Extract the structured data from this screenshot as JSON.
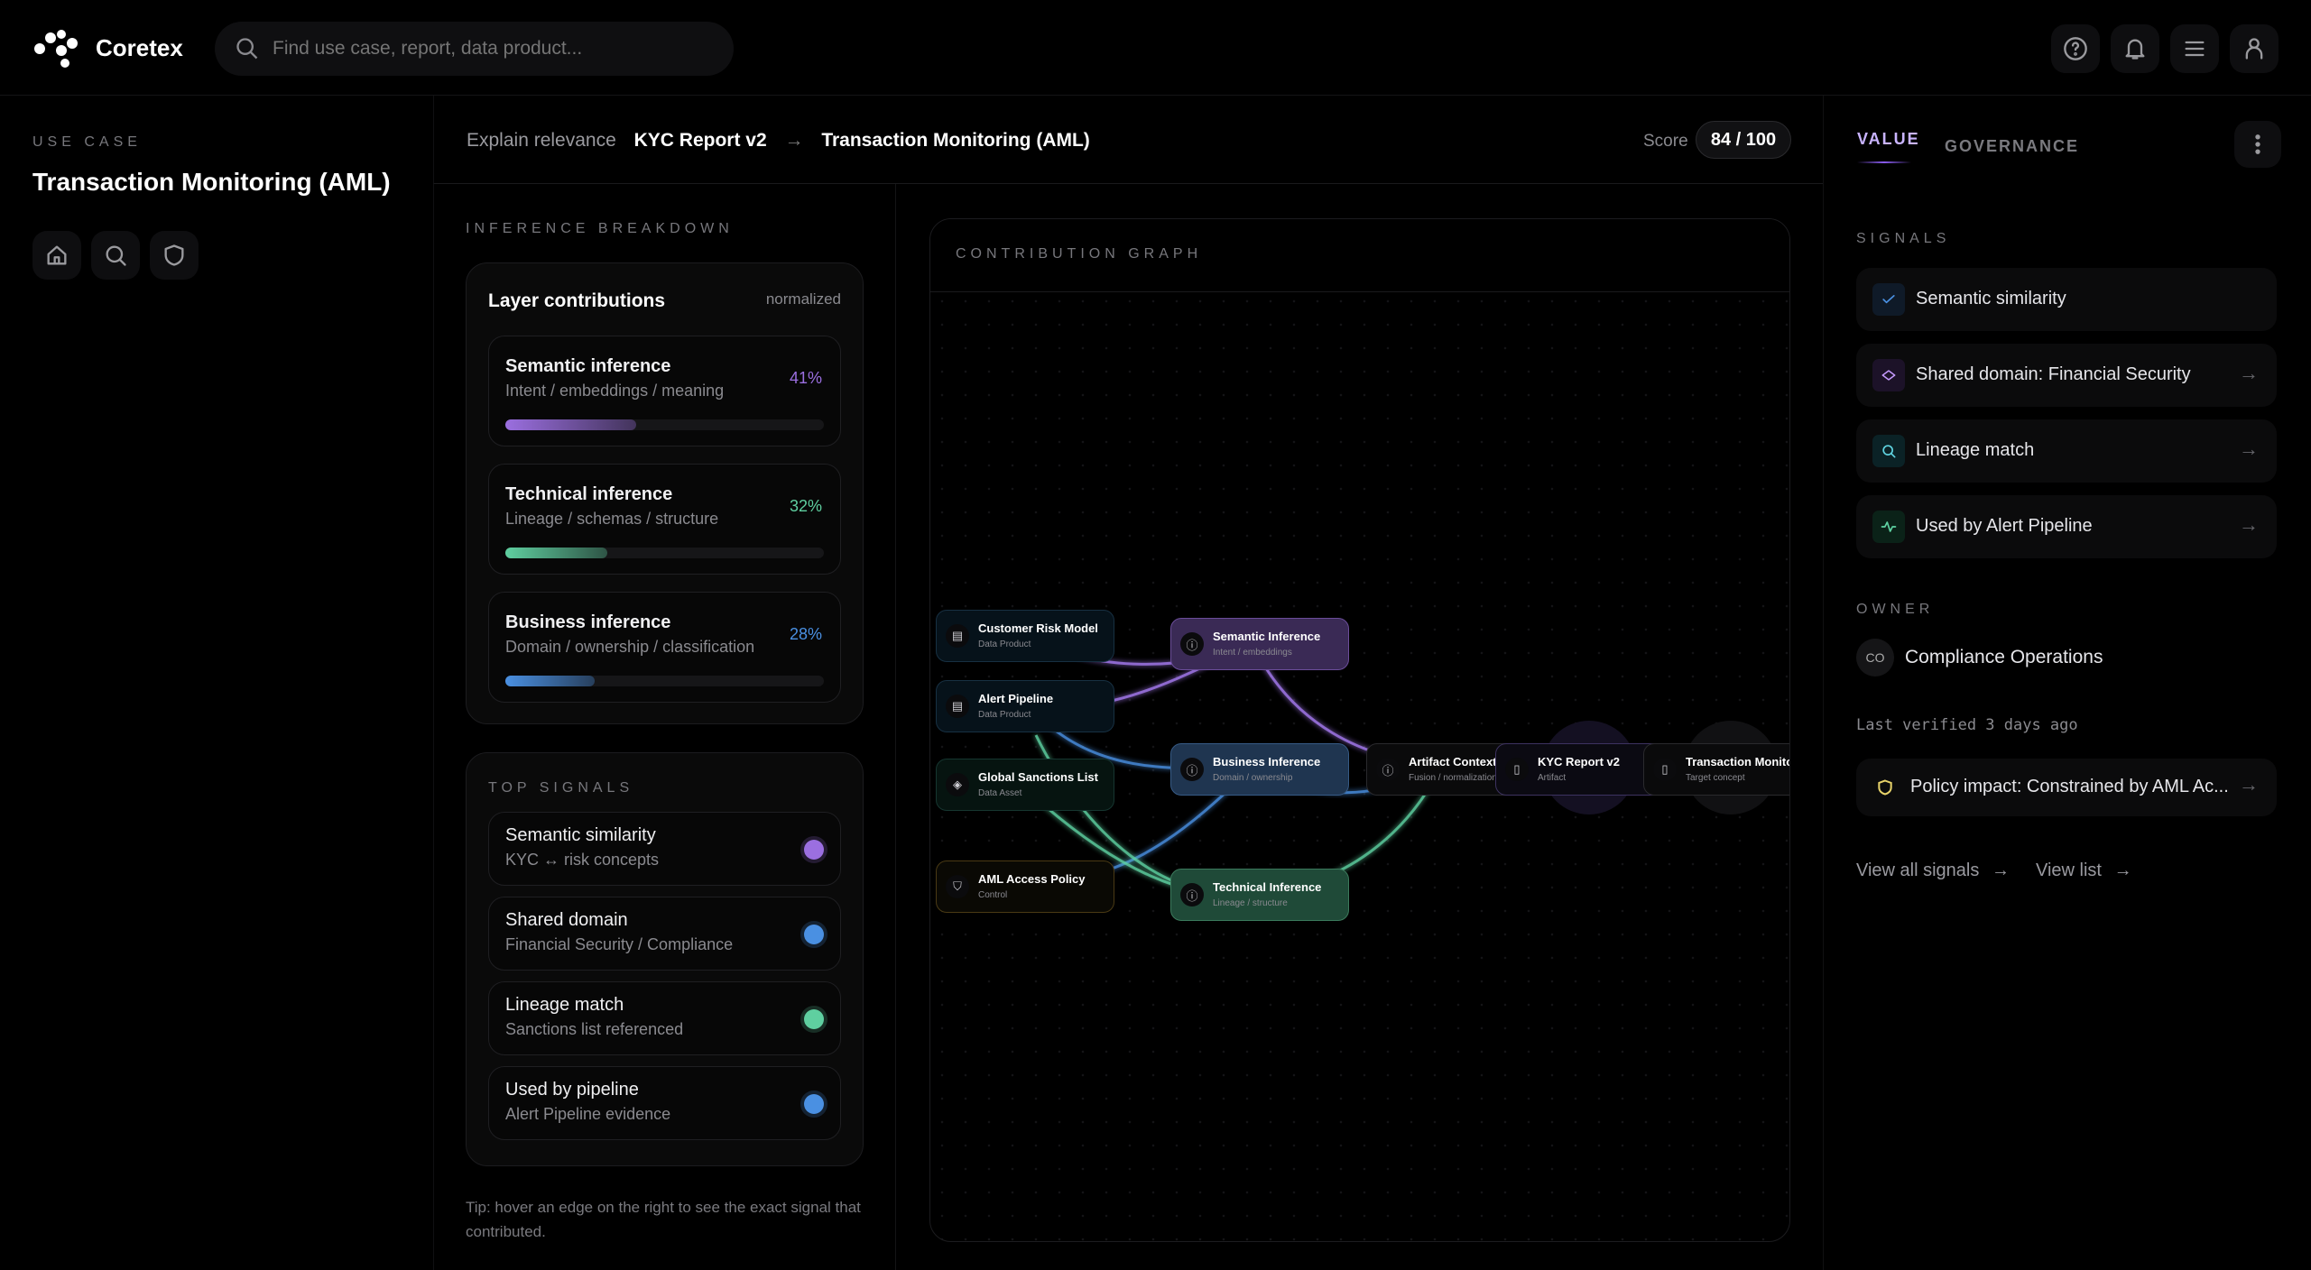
{
  "header": {
    "brand": "Coretex",
    "search_placeholder": "Find use case, report, data product...",
    "icons": [
      "help-icon",
      "bell-icon",
      "menu-icon",
      "user-icon"
    ]
  },
  "sidebar": {
    "label": "USE CASE",
    "title": "Transaction Monitoring (AML)",
    "icons": [
      "home-icon",
      "search-icon",
      "shield-icon"
    ]
  },
  "breadcrumb": {
    "prefix": "Explain relevance",
    "source": "KYC Report v2",
    "arrow": "→",
    "target": "Transaction Monitoring (AML)",
    "score_label": "Score",
    "score": "84 / 100"
  },
  "breakdown": {
    "label": "INFERENCE BREAKDOWN",
    "card_title": "Layer contributions",
    "card_note": "normalized",
    "layers": [
      {
        "title": "Semantic inference",
        "desc": "Intent / embeddings / meaning",
        "pct": "41%",
        "value": 41,
        "color": "#9b6fe0"
      },
      {
        "title": "Technical inference",
        "desc": "Lineage / schemas / structure",
        "pct": "32%",
        "value": 32,
        "color": "#5fcfa0"
      },
      {
        "title": "Business inference",
        "desc": "Domain / ownership / classification",
        "pct": "28%",
        "value": 28,
        "color": "#4a90e2"
      }
    ]
  },
  "top_signals": {
    "label": "TOP SIGNALS",
    "items": [
      {
        "title": "Semantic similarity",
        "desc": "KYC ↔ risk concepts",
        "color": "#9b6fe0"
      },
      {
        "title": "Shared domain",
        "desc": "Financial Security / Compliance",
        "color": "#4a90e2"
      },
      {
        "title": "Lineage match",
        "desc": "Sanctions list referenced",
        "color": "#5fcfa0"
      },
      {
        "title": "Used by pipeline",
        "desc": "Alert Pipeline evidence",
        "color": "#4a90e2"
      }
    ]
  },
  "tip": "Tip: hover an edge on the right to see the exact signal that contributed.",
  "graph": {
    "label": "CONTRIBUTION GRAPH",
    "nodes": [
      {
        "title": "Customer Risk Model",
        "sub": "Data Product"
      },
      {
        "title": "Alert Pipeline",
        "sub": "Data Product"
      },
      {
        "title": "Global Sanctions List",
        "sub": "Data Asset"
      },
      {
        "title": "AML Access Policy",
        "sub": "Control"
      },
      {
        "title": "Semantic Inference",
        "sub": "Intent / embeddings"
      },
      {
        "title": "Business Inference",
        "sub": "Domain / ownership"
      },
      {
        "title": "Technical Inference",
        "sub": "Lineage / structure"
      },
      {
        "title": "Artifact Context",
        "sub": "Fusion / normalization"
      },
      {
        "title": "KYC Report v2",
        "sub": "Artifact"
      },
      {
        "title": "Transaction Monitoring",
        "sub": "Target concept"
      }
    ],
    "colors": {
      "semantic": "#a77bf3",
      "business": "#4a90e2",
      "technical": "#5fd3a3"
    }
  },
  "right": {
    "tabs": [
      "VALUE",
      "GOVERNANCE"
    ],
    "active_tab": "VALUE",
    "signals_label": "SIGNALS",
    "signals": [
      {
        "label": "Semantic similarity",
        "icon": "check-icon"
      },
      {
        "label": "Shared domain: Financial Security",
        "icon": "diamond-icon"
      },
      {
        "label": "Lineage match",
        "icon": "search-icon"
      },
      {
        "label": "Used by Alert Pipeline",
        "icon": "activity-icon"
      }
    ],
    "owner_label": "OWNER",
    "owner_initials": "CO",
    "owner": "Compliance Operations",
    "last_verified": "Last verified 3 days ago",
    "policy": "Policy impact: Constrained by AML Ac...",
    "links": [
      "View all signals",
      "View list"
    ]
  }
}
